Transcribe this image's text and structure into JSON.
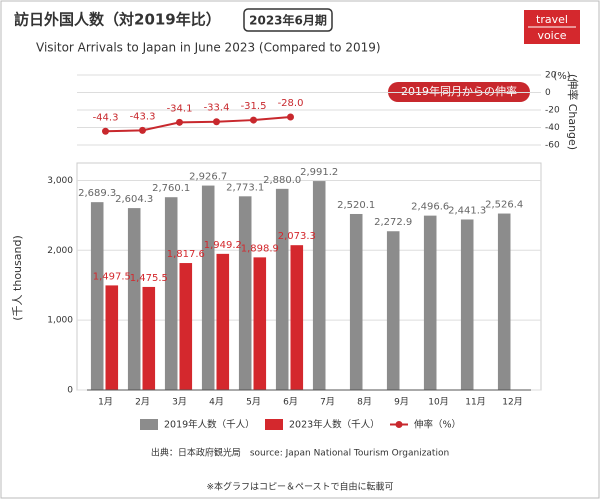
{
  "header": {
    "title": "訪日外国人数（対2019年比）",
    "period": "2023年6月期",
    "logo": [
      "travel",
      "voice"
    ],
    "subtitle": "Visitor Arrivals to Japan in June 2023 (Compared to 2019)"
  },
  "chart_data": [
    {
      "type": "line",
      "annotation": "2019年同月からの伸率",
      "y_label": "(伸率 Change)",
      "y_unit": "(%)",
      "categories": [
        "1月",
        "2月",
        "3月",
        "4月",
        "5月",
        "6月"
      ],
      "series": [
        {
          "name": "伸率（%）",
          "color": "#c8282d",
          "values": [
            -44.3,
            -43.3,
            -34.1,
            -33.4,
            -31.5,
            -28.0
          ],
          "value_labels": [
            "-44.3",
            "-43.3",
            "-34.1",
            "-33.4",
            "-31.5",
            "-28.0"
          ]
        }
      ],
      "ylim": [
        -60,
        20
      ],
      "yticks": [
        20,
        0,
        -20,
        -40,
        -60
      ],
      "grid": true
    },
    {
      "type": "bar",
      "y_label": "(千人 thousand)",
      "categories": [
        "1月",
        "2月",
        "3月",
        "4月",
        "5月",
        "6月",
        "7月",
        "8月",
        "9月",
        "10月",
        "11月",
        "12月"
      ],
      "series": [
        {
          "name": "2019年人数（千人）",
          "color": "#8c8c8c",
          "values": [
            2689.3,
            2604.3,
            2760.1,
            2926.7,
            2773.1,
            2880.0,
            2991.2,
            2520.1,
            2272.9,
            2496.6,
            2441.3,
            2526.4
          ],
          "value_labels": [
            "2,689.3",
            "2,604.3",
            "2,760.1",
            "2,926.7",
            "2,773.1",
            "2,880.0",
            "2,991.2",
            "2,520.1",
            "2,272.9",
            "2,496.6",
            "2,441.3",
            "2,526.4"
          ]
        },
        {
          "name": "2023年人数（千人）",
          "color": "#d4282d",
          "values": [
            1497.5,
            1475.5,
            1817.6,
            1949.2,
            1898.9,
            2073.3,
            null,
            null,
            null,
            null,
            null,
            null
          ],
          "value_labels": [
            "1,497.5",
            "1,475.5",
            "1,817.6",
            "1,949.2",
            "1,898.9",
            "2,073.3",
            null,
            null,
            null,
            null,
            null,
            null
          ]
        }
      ],
      "ylim": [
        0,
        3250
      ],
      "yticks": [
        0,
        {
          "value": 1000,
          "label": "1,000"
        },
        {
          "value": 2000,
          "label": "2,000"
        },
        {
          "value": 3000,
          "label": "3,000"
        }
      ],
      "grid": true
    }
  ],
  "source": "出典：日本政府観光局　source: Japan National Tourism Organization",
  "footnote": "※本グラフはコピー＆ペーストで自由に転載可"
}
